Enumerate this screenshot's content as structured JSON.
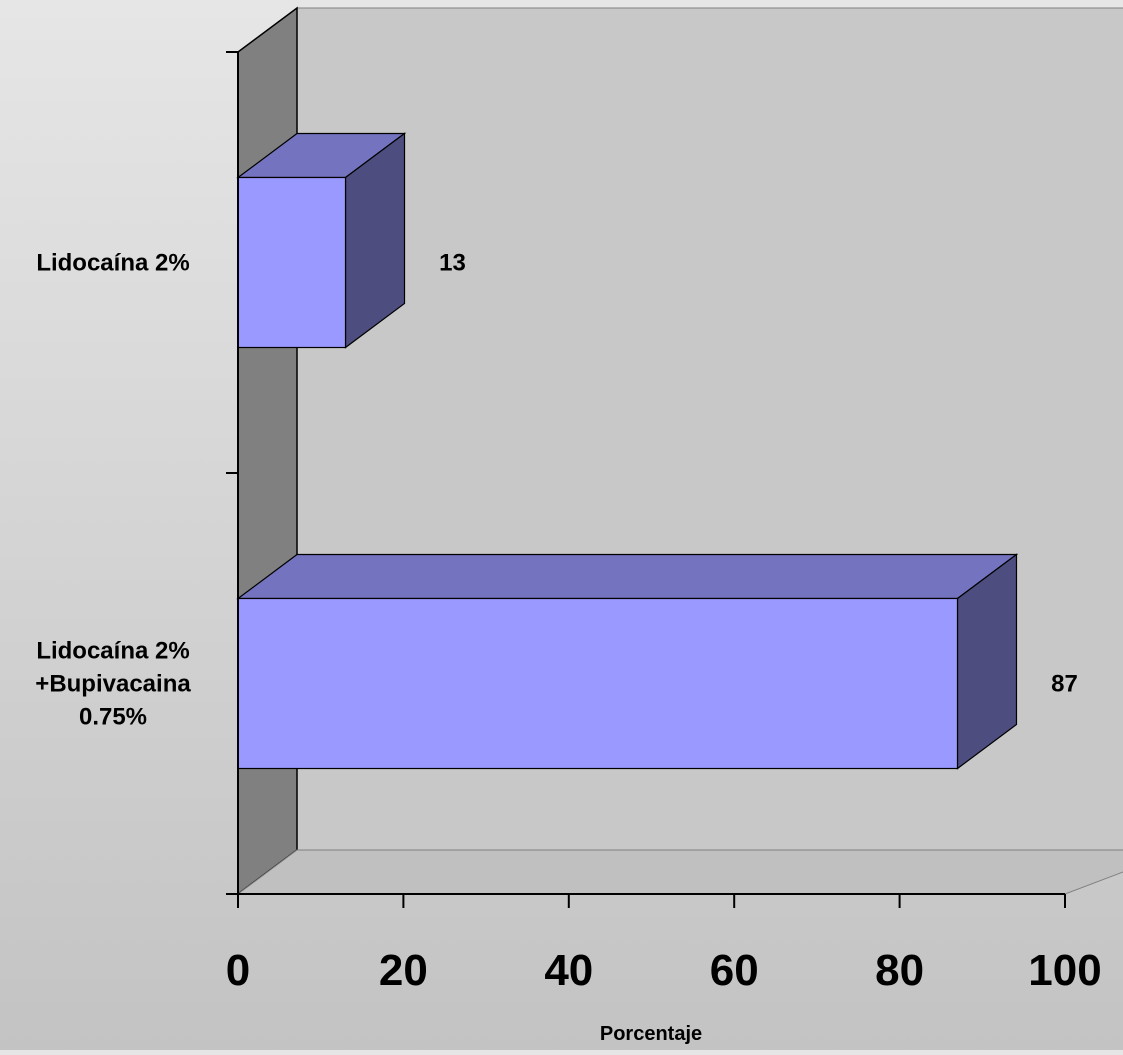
{
  "chart_data": {
    "type": "bar",
    "orientation": "horizontal",
    "three_d": true,
    "categories": [
      [
        "Lidocaína 2%"
      ],
      [
        "Lidocaína 2%",
        "+Bupivacaina",
        "0.75%"
      ]
    ],
    "values": [
      13,
      87
    ],
    "data_labels": [
      "13",
      "87"
    ],
    "xlabel": "Porcentaje",
    "xlim": [
      0,
      100
    ],
    "x_ticks": [
      "0",
      "20",
      "40",
      "60",
      "80",
      "100"
    ],
    "grid": false,
    "legend": "none",
    "colors": {
      "bar_front": "#9999ff",
      "bar_top": "#7373bf",
      "bar_side": "#4d4d80",
      "back_wall": "#c8c8c8",
      "side_wall": "#808080",
      "floor": "#c0c0c0"
    }
  }
}
